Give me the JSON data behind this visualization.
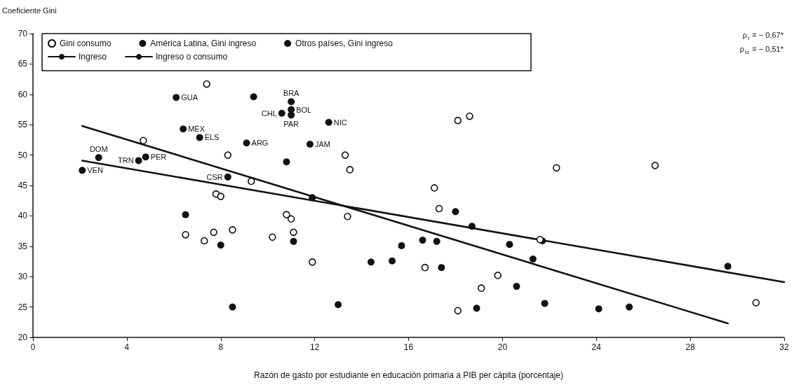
{
  "chart_data": {
    "type": "scatter",
    "xlabel": "Razón de gasto por estudiante en educación primaria a PIB per cápita (porcentaje)",
    "ylabel": "Coeficiente Gini",
    "xlim": [
      0,
      32
    ],
    "xticks": [
      0,
      4,
      8,
      12,
      16,
      20,
      24,
      28,
      32
    ],
    "ylim": [
      20,
      70
    ],
    "yticks": [
      20,
      25,
      30,
      35,
      40,
      45,
      50,
      55,
      60,
      65,
      70
    ],
    "legend": "top left",
    "series": [
      {
        "name": "Gini consumo",
        "marker": "circle",
        "color": "#111111",
        "x": [
          7.4,
          4.7,
          8.3,
          9.3,
          7.8,
          8.0,
          6.5,
          7.3,
          7.7,
          8.5,
          10.2,
          10.8,
          11.0,
          11.1,
          11.9,
          13.3,
          13.5,
          13.4,
          17.1,
          18.1,
          18.6,
          17.3,
          16.7,
          19.8,
          19.1,
          18.1,
          21.6,
          22.3,
          26.5,
          30.8
        ],
        "values": [
          61.7,
          52.4,
          50.0,
          45.7,
          43.6,
          43.2,
          36.9,
          35.9,
          37.3,
          37.7,
          36.5,
          40.2,
          39.5,
          37.3,
          32.4,
          50.0,
          47.6,
          39.9,
          44.6,
          55.7,
          56.4,
          41.2,
          31.5,
          30.2,
          28.1,
          24.4,
          36.1,
          47.9,
          48.3,
          25.7
        ]
      },
      {
        "name": "América Latina, Gini ingreso",
        "marker": "circle",
        "color": "#111111",
        "x": [
          6.1,
          6.4,
          7.1,
          9.1,
          11.0,
          11.0,
          10.6,
          11.0,
          12.6,
          11.8,
          2.8,
          4.5,
          4.8,
          2.1,
          8.3
        ],
        "values": [
          59.5,
          54.3,
          52.9,
          52.0,
          58.8,
          57.5,
          56.9,
          56.6,
          55.4,
          51.8,
          49.6,
          49.1,
          49.7,
          47.5,
          46.4
        ]
      },
      {
        "name": "Otros países, Gini ingreso",
        "marker": "circle",
        "color": "#111111",
        "x": [
          9.4,
          10.8,
          6.5,
          8.0,
          8.5,
          11.1,
          11.9,
          13.0,
          14.4,
          15.3,
          15.7,
          16.6,
          17.2,
          18.0,
          18.7,
          17.4,
          20.6,
          18.9,
          20.3,
          21.7,
          21.3,
          21.8,
          24.1,
          25.4,
          29.6
        ],
        "values": [
          59.6,
          48.9,
          40.2,
          35.2,
          25.0,
          35.8,
          43.0,
          25.4,
          32.4,
          32.6,
          35.1,
          36.0,
          35.8,
          40.7,
          38.3,
          31.5,
          28.4,
          24.8,
          35.3,
          35.9,
          32.9,
          25.6,
          24.7,
          25.0,
          31.7
        ]
      },
      {
        "name": "Ingreso",
        "type": "line",
        "marker": "none",
        "line_style": "solid",
        "color": "#111111",
        "x": [
          2.1,
          29.6
        ],
        "values": [
          54.8,
          22.3
        ]
      },
      {
        "name": "Ingreso o consumo",
        "type": "line",
        "marker": "none",
        "line_style": "solid",
        "color": "#111111",
        "x": [
          2.1,
          32.0
        ],
        "values": [
          49.1,
          29.1
        ]
      }
    ],
    "annotations": [
      {
        "text": "GUA",
        "x": 6.1,
        "y": 59.5
      },
      {
        "text": "MÉX",
        "x": 6.4,
        "y": 54.3
      },
      {
        "text": "ELS",
        "x": 7.1,
        "y": 52.9
      },
      {
        "text": "ARG",
        "x": 9.1,
        "y": 52.0
      },
      {
        "text": "BRA",
        "x": 11.0,
        "y": 58.8
      },
      {
        "text": "BOL",
        "x": 11.0,
        "y": 57.5
      },
      {
        "text": "CHL",
        "x": 10.6,
        "y": 56.9
      },
      {
        "text": "PAR",
        "x": 11.0,
        "y": 56.6
      },
      {
        "text": "NIC",
        "x": 12.6,
        "y": 55.4
      },
      {
        "text": "JAM",
        "x": 11.8,
        "y": 51.8
      },
      {
        "text": "DOM",
        "x": 2.8,
        "y": 49.6
      },
      {
        "text": "TRN",
        "x": 4.5,
        "y": 49.1
      },
      {
        "text": "PER",
        "x": 4.8,
        "y": 49.7
      },
      {
        "text": "VEN",
        "x": 2.1,
        "y": 47.5
      },
      {
        "text": "CSR",
        "x": 8.3,
        "y": 46.4
      },
      "ρ$_{I}$ = − 0,67*",
      "ρ$_{Ic}$ = − 0,51*"
    ]
  }
}
